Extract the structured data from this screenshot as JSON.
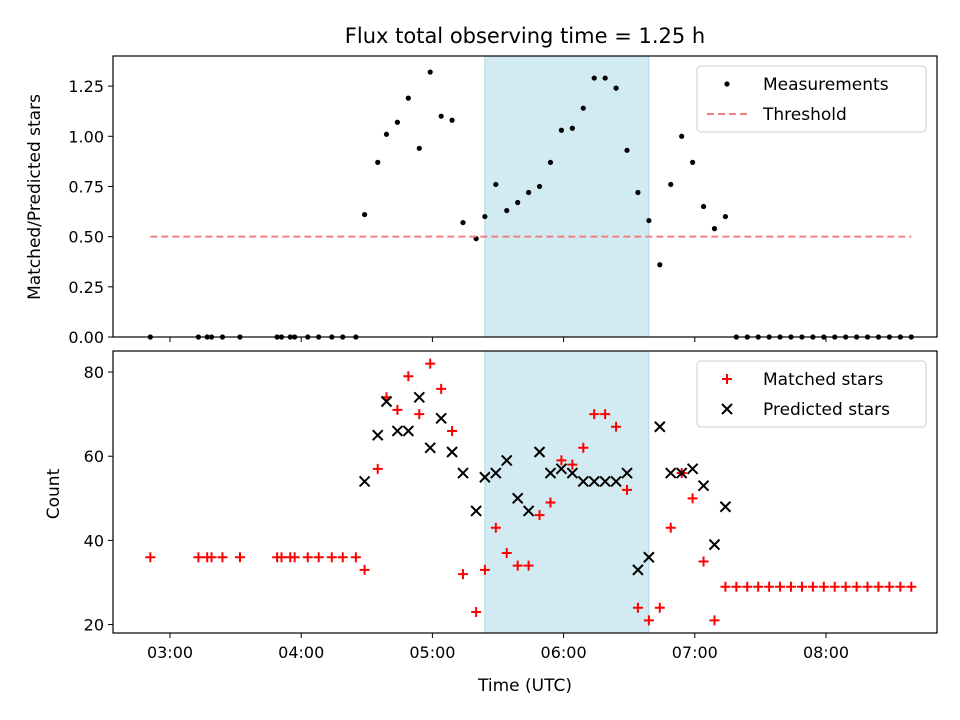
{
  "title": "Flux total observing time = 1.25 h",
  "chart_data": [
    {
      "type": "scatter",
      "ylabel": "Matched/Predicted stars",
      "xlabel": "",
      "ylim": [
        0,
        1.4
      ],
      "yticks": [
        "0.00",
        "0.25",
        "0.50",
        "0.75",
        "1.00",
        "1.25"
      ],
      "legend_position": "top-right",
      "shaded_region": {
        "from": "05:24",
        "to": "06:39",
        "color": "#add8e6"
      },
      "series": [
        {
          "name": "Measurements",
          "marker": "dot",
          "color": "#000000",
          "points": [
            [
              "02:51",
              0
            ],
            [
              "03:13",
              0
            ],
            [
              "03:17",
              0
            ],
            [
              "03:19",
              0
            ],
            [
              "03:24",
              0
            ],
            [
              "03:32",
              0
            ],
            [
              "03:49",
              0
            ],
            [
              "03:51",
              0
            ],
            [
              "03:55",
              0
            ],
            [
              "03:57",
              0
            ],
            [
              "04:03",
              0
            ],
            [
              "04:08",
              0
            ],
            [
              "04:14",
              0
            ],
            [
              "04:19",
              0
            ],
            [
              "04:25",
              0
            ],
            [
              "04:29",
              0.61
            ],
            [
              "04:35",
              0.87
            ],
            [
              "04:39",
              1.01
            ],
            [
              "04:44",
              1.07
            ],
            [
              "04:49",
              1.19
            ],
            [
              "04:54",
              0.94
            ],
            [
              "04:59",
              1.32
            ],
            [
              "05:04",
              1.1
            ],
            [
              "05:09",
              1.08
            ],
            [
              "05:14",
              0.57
            ],
            [
              "05:20",
              0.49
            ],
            [
              "05:24",
              0.6
            ],
            [
              "05:29",
              0.76
            ],
            [
              "05:34",
              0.63
            ],
            [
              "05:39",
              0.67
            ],
            [
              "05:44",
              0.72
            ],
            [
              "05:49",
              0.75
            ],
            [
              "05:54",
              0.87
            ],
            [
              "05:59",
              1.03
            ],
            [
              "06:04",
              1.04
            ],
            [
              "06:09",
              1.14
            ],
            [
              "06:14",
              1.29
            ],
            [
              "06:19",
              1.29
            ],
            [
              "06:24",
              1.24
            ],
            [
              "06:29",
              0.93
            ],
            [
              "06:34",
              0.72
            ],
            [
              "06:39",
              0.58
            ],
            [
              "06:44",
              0.36
            ],
            [
              "06:49",
              0.76
            ],
            [
              "06:54",
              1.0
            ],
            [
              "06:59",
              0.87
            ],
            [
              "07:04",
              0.65
            ],
            [
              "07:09",
              0.54
            ],
            [
              "07:14",
              0.6
            ],
            [
              "07:19",
              0
            ],
            [
              "07:24",
              0
            ],
            [
              "07:29",
              0
            ],
            [
              "07:34",
              0
            ],
            [
              "07:39",
              0
            ],
            [
              "07:44",
              0
            ],
            [
              "07:49",
              0
            ],
            [
              "07:54",
              0
            ],
            [
              "07:59",
              0
            ],
            [
              "08:04",
              0
            ],
            [
              "08:09",
              0
            ],
            [
              "08:14",
              0
            ],
            [
              "08:19",
              0
            ],
            [
              "08:24",
              0
            ],
            [
              "08:29",
              0
            ],
            [
              "08:34",
              0
            ],
            [
              "08:39",
              0
            ]
          ]
        },
        {
          "name": "Threshold",
          "marker": "dashed-line",
          "color": "#f08080",
          "points": [
            [
              "02:51",
              0.5
            ],
            [
              "08:39",
              0.5
            ]
          ]
        }
      ]
    },
    {
      "type": "scatter",
      "ylabel": "Count",
      "xlabel": "Time (UTC)",
      "ylim": [
        18,
        85
      ],
      "yticks": [
        "20",
        "40",
        "60",
        "80"
      ],
      "xticks": [
        "03:00",
        "04:00",
        "05:00",
        "06:00",
        "07:00",
        "08:00"
      ],
      "legend_position": "top-right",
      "shaded_region": {
        "from": "05:24",
        "to": "06:39",
        "color": "#add8e6"
      },
      "series": [
        {
          "name": "Matched stars",
          "marker": "plus",
          "color": "#ff0000",
          "points": [
            [
              "02:51",
              36
            ],
            [
              "03:13",
              36
            ],
            [
              "03:17",
              36
            ],
            [
              "03:19",
              36
            ],
            [
              "03:24",
              36
            ],
            [
              "03:32",
              36
            ],
            [
              "03:49",
              36
            ],
            [
              "03:51",
              36
            ],
            [
              "03:55",
              36
            ],
            [
              "03:57",
              36
            ],
            [
              "04:03",
              36
            ],
            [
              "04:08",
              36
            ],
            [
              "04:14",
              36
            ],
            [
              "04:19",
              36
            ],
            [
              "04:25",
              36
            ],
            [
              "04:29",
              33
            ],
            [
              "04:35",
              57
            ],
            [
              "04:39",
              74
            ],
            [
              "04:44",
              71
            ],
            [
              "04:49",
              79
            ],
            [
              "04:54",
              70
            ],
            [
              "04:59",
              82
            ],
            [
              "05:04",
              76
            ],
            [
              "05:09",
              66
            ],
            [
              "05:14",
              32
            ],
            [
              "05:20",
              23
            ],
            [
              "05:24",
              33
            ],
            [
              "05:29",
              43
            ],
            [
              "05:34",
              37
            ],
            [
              "05:39",
              34
            ],
            [
              "05:44",
              34
            ],
            [
              "05:49",
              46
            ],
            [
              "05:54",
              49
            ],
            [
              "05:59",
              59
            ],
            [
              "06:04",
              58
            ],
            [
              "06:09",
              62
            ],
            [
              "06:14",
              70
            ],
            [
              "06:19",
              70
            ],
            [
              "06:24",
              67
            ],
            [
              "06:29",
              52
            ],
            [
              "06:34",
              24
            ],
            [
              "06:39",
              21
            ],
            [
              "06:44",
              24
            ],
            [
              "06:49",
              43
            ],
            [
              "06:54",
              56
            ],
            [
              "06:59",
              50
            ],
            [
              "07:04",
              35
            ],
            [
              "07:09",
              21
            ],
            [
              "07:14",
              29
            ],
            [
              "07:19",
              29
            ],
            [
              "07:24",
              29
            ],
            [
              "07:29",
              29
            ],
            [
              "07:34",
              29
            ],
            [
              "07:39",
              29
            ],
            [
              "07:44",
              29
            ],
            [
              "07:49",
              29
            ],
            [
              "07:54",
              29
            ],
            [
              "07:59",
              29
            ],
            [
              "08:04",
              29
            ],
            [
              "08:09",
              29
            ],
            [
              "08:14",
              29
            ],
            [
              "08:19",
              29
            ],
            [
              "08:24",
              29
            ],
            [
              "08:29",
              29
            ],
            [
              "08:34",
              29
            ],
            [
              "08:39",
              29
            ]
          ]
        },
        {
          "name": "Predicted stars",
          "marker": "x",
          "color": "#000000",
          "points": [
            [
              "04:29",
              54
            ],
            [
              "04:35",
              65
            ],
            [
              "04:39",
              73
            ],
            [
              "04:44",
              66
            ],
            [
              "04:49",
              66
            ],
            [
              "04:54",
              74
            ],
            [
              "04:59",
              62
            ],
            [
              "05:04",
              69
            ],
            [
              "05:09",
              61
            ],
            [
              "05:14",
              56
            ],
            [
              "05:20",
              47
            ],
            [
              "05:24",
              55
            ],
            [
              "05:29",
              56
            ],
            [
              "05:34",
              59
            ],
            [
              "05:39",
              50
            ],
            [
              "05:44",
              47
            ],
            [
              "05:49",
              61
            ],
            [
              "05:54",
              56
            ],
            [
              "05:59",
              57
            ],
            [
              "06:04",
              56
            ],
            [
              "06:09",
              54
            ],
            [
              "06:14",
              54
            ],
            [
              "06:19",
              54
            ],
            [
              "06:24",
              54
            ],
            [
              "06:29",
              56
            ],
            [
              "06:34",
              33
            ],
            [
              "06:39",
              36
            ],
            [
              "06:44",
              67
            ],
            [
              "06:49",
              56
            ],
            [
              "06:54",
              56
            ],
            [
              "06:59",
              57
            ],
            [
              "07:04",
              53
            ],
            [
              "07:09",
              39
            ],
            [
              "07:14",
              48
            ]
          ]
        }
      ]
    }
  ]
}
